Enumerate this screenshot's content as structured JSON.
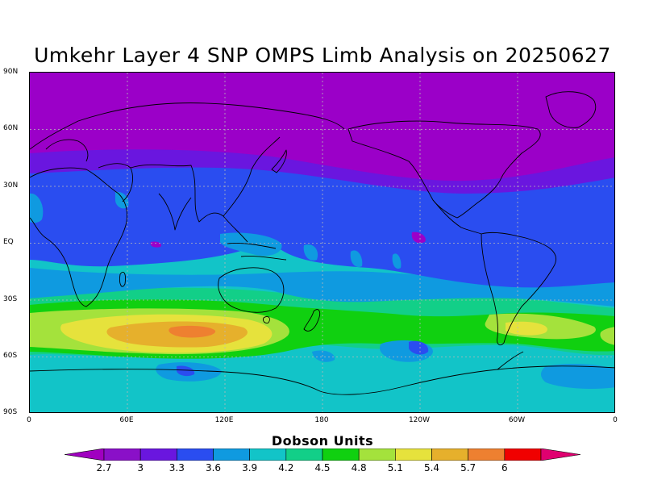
{
  "title": "Umkehr Layer 4 SNP OMPS Limb Analysis on 20250627",
  "map": {
    "lat_labels": [
      "90N",
      "60N",
      "30N",
      "EQ",
      "30S",
      "60S",
      "90S"
    ],
    "lon_labels": [
      "0",
      "60E",
      "120E",
      "180",
      "120W",
      "60W",
      "0"
    ],
    "levels": [
      {
        "name": "below-2.7",
        "color": "#9b00c8"
      },
      {
        "name": "2.7-3",
        "color": "#6a16df"
      },
      {
        "name": "3-3.3",
        "color": "#2a4df0"
      },
      {
        "name": "3.3-3.6",
        "color": "#0f9ae0"
      },
      {
        "name": "3.6-3.9",
        "color": "#12c4c8"
      },
      {
        "name": "3.9-4.2",
        "color": "#12cf88"
      },
      {
        "name": "4.2-4.5",
        "color": "#10d010"
      },
      {
        "name": "4.5-4.8",
        "color": "#a4e23c"
      },
      {
        "name": "4.8-5.1",
        "color": "#e6e23c"
      },
      {
        "name": "5.1-5.4",
        "color": "#e6b02c"
      },
      {
        "name": "5.4-5.7",
        "color": "#ee8030"
      }
    ]
  },
  "colorbar": {
    "title": "Dobson Units",
    "tick_labels": [
      "2.7",
      "3",
      "3.3",
      "3.6",
      "3.9",
      "4.2",
      "4.5",
      "4.8",
      "5.1",
      "5.4",
      "5.7",
      "6"
    ],
    "colors": [
      "#8a10c8",
      "#6a16df",
      "#2a4df0",
      "#0f9ae0",
      "#12c4c8",
      "#12cf88",
      "#10d010",
      "#a4e23c",
      "#e6e23c",
      "#e6b02c",
      "#ee8030",
      "#f00000"
    ],
    "end_low_color": "#a000c0",
    "end_high_color": "#e00070"
  }
}
